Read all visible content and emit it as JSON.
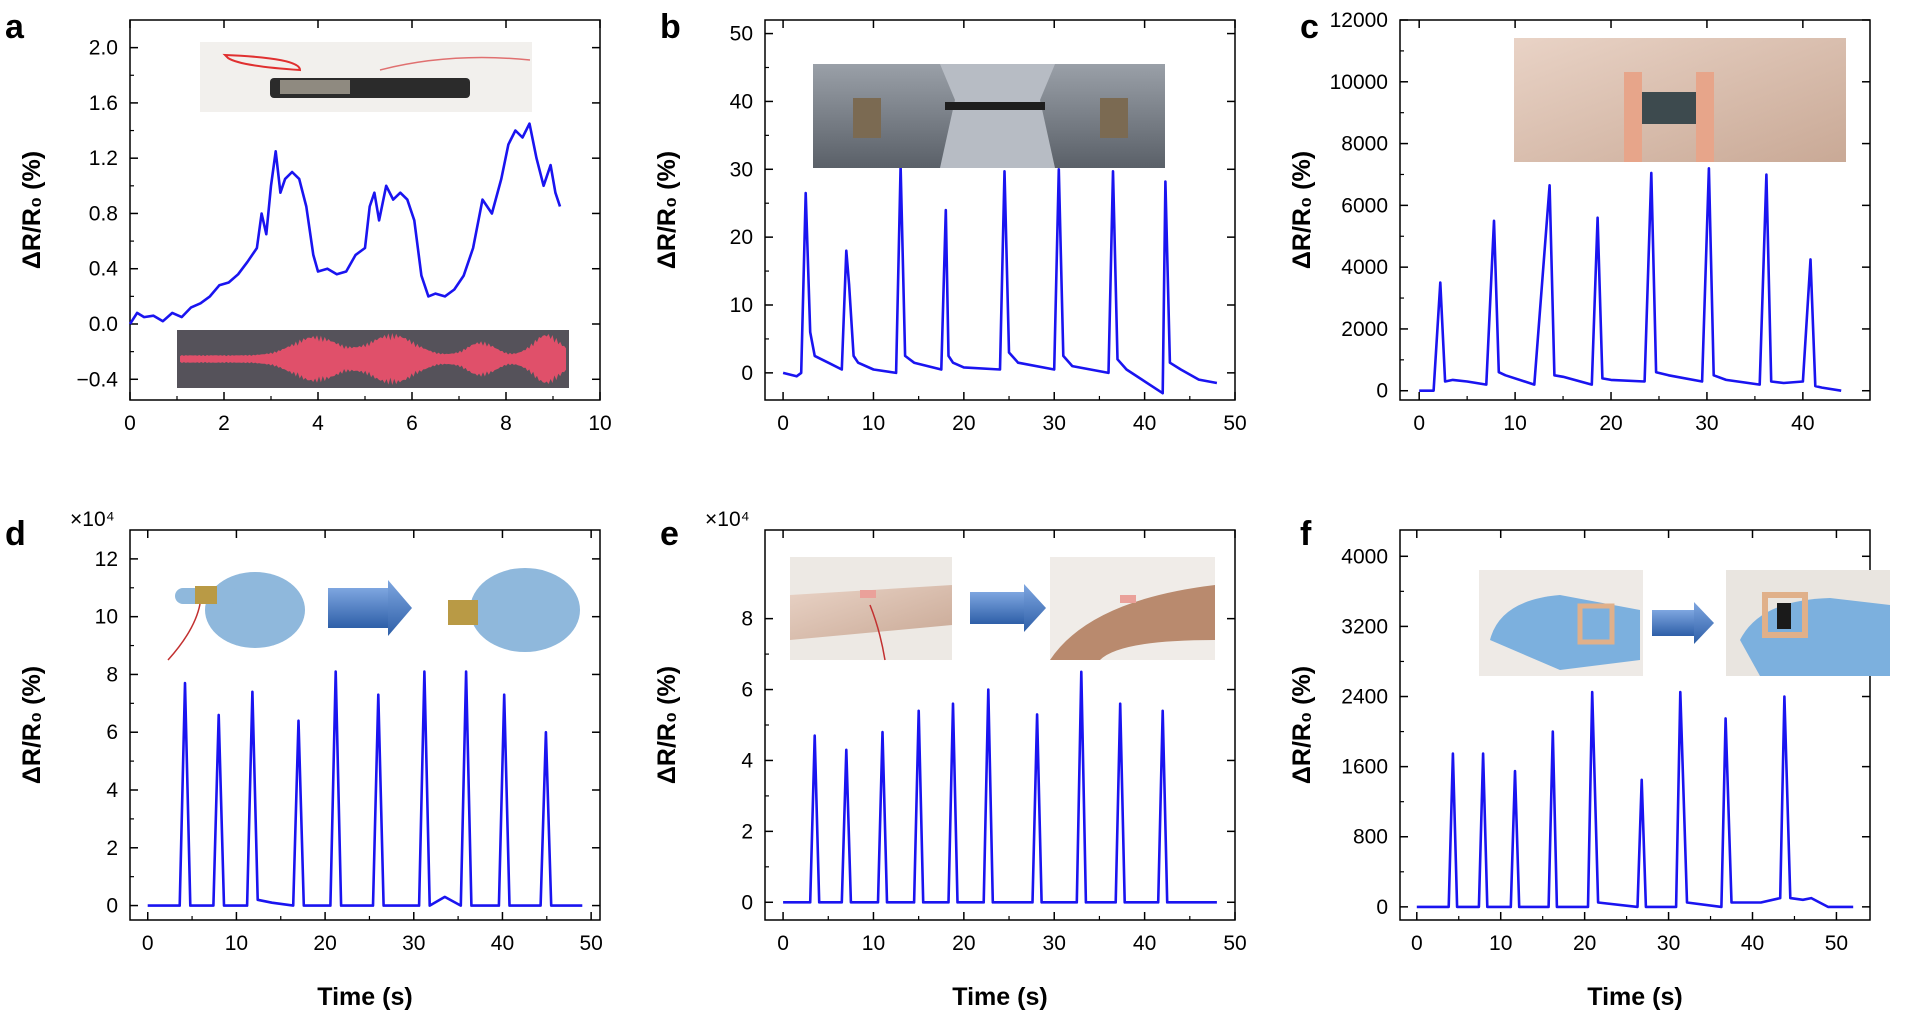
{
  "figure": {
    "panels": [
      {
        "letter": "a",
        "ylabel": "ΔR/R₀ (%)",
        "xlabel": "",
        "multiplier": ""
      },
      {
        "letter": "b",
        "ylabel": "ΔR/R₀ (%)",
        "xlabel": "",
        "multiplier": ""
      },
      {
        "letter": "c",
        "ylabel": "ΔR/R₀ (%)",
        "xlabel": "",
        "multiplier": ""
      },
      {
        "letter": "d",
        "ylabel": "ΔR/R₀ (%)",
        "xlabel": "Time (s)",
        "multiplier": "×10⁴"
      },
      {
        "letter": "e",
        "ylabel": "ΔR/R₀ (%)",
        "xlabel": "Time (s)",
        "multiplier": "×10⁴"
      },
      {
        "letter": "f",
        "ylabel": "ΔR/R₀ (%)",
        "xlabel": "Time (s)",
        "multiplier": ""
      }
    ]
  },
  "colors": {
    "line": "#1a14f0",
    "axis": "#000000"
  },
  "chart_data": [
    {
      "type": "line",
      "panel": "a",
      "xlim": [
        0,
        10
      ],
      "ylim": [
        -0.55,
        2.2
      ],
      "xticks": [
        0,
        2,
        4,
        6,
        8,
        10
      ],
      "yticks": [
        -0.4,
        0.0,
        0.4,
        0.8,
        1.2,
        1.6,
        2.0
      ],
      "ytick_labels": [
        "−0.4",
        "0.0",
        "0.4",
        "0.8",
        "1.2",
        "1.6",
        "2.0"
      ],
      "xlabel": "",
      "ylabel": "ΔR/R₀ (%)",
      "series": [
        {
          "x": [
            0,
            0.15,
            0.3,
            0.5,
            0.7,
            0.9,
            1.1,
            1.3,
            1.5,
            1.7,
            1.9,
            2.1,
            2.3,
            2.5,
            2.7,
            2.8,
            2.9,
            3.0,
            3.1,
            3.2,
            3.3,
            3.45,
            3.6,
            3.75,
            3.9,
            4.0,
            4.2,
            4.4,
            4.6,
            4.8,
            5.0,
            5.1,
            5.2,
            5.3,
            5.45,
            5.6,
            5.75,
            5.9,
            6.05,
            6.2,
            6.35,
            6.5,
            6.7,
            6.9,
            7.1,
            7.3,
            7.5,
            7.7,
            7.9,
            8.05,
            8.2,
            8.35,
            8.5,
            8.65,
            8.8,
            8.95,
            9.05,
            9.15
          ],
          "y": [
            0.0,
            0.08,
            0.05,
            0.06,
            0.02,
            0.08,
            0.05,
            0.12,
            0.15,
            0.2,
            0.28,
            0.3,
            0.36,
            0.45,
            0.55,
            0.8,
            0.65,
            1.0,
            1.25,
            0.95,
            1.05,
            1.1,
            1.05,
            0.85,
            0.5,
            0.38,
            0.4,
            0.36,
            0.38,
            0.5,
            0.55,
            0.85,
            0.95,
            0.75,
            1.0,
            0.9,
            0.95,
            0.9,
            0.75,
            0.35,
            0.2,
            0.22,
            0.2,
            0.25,
            0.35,
            0.55,
            0.9,
            0.8,
            1.05,
            1.3,
            1.4,
            1.35,
            1.45,
            1.2,
            1.0,
            1.15,
            0.95,
            0.85
          ]
        }
      ]
    },
    {
      "type": "line",
      "panel": "b",
      "xlim": [
        -2,
        50
      ],
      "ylim": [
        -4,
        52
      ],
      "xticks": [
        0,
        10,
        20,
        30,
        40,
        50
      ],
      "yticks": [
        0,
        10,
        20,
        30,
        40,
        50
      ],
      "xlabel": "",
      "ylabel": "ΔR/R₀ (%)",
      "series": [
        {
          "x": [
            0,
            1.5,
            2.0,
            2.5,
            3.0,
            3.5,
            5.0,
            6.5,
            7.0,
            7.3,
            7.8,
            8.3,
            10,
            12.5,
            13.0,
            13.5,
            14.5,
            17.5,
            18.0,
            18.3,
            18.8,
            20,
            24,
            24.5,
            25.0,
            26,
            30,
            30.5,
            31.0,
            32,
            36,
            36.5,
            37.0,
            38,
            42,
            42.3,
            42.8,
            44,
            46,
            48
          ],
          "y": [
            0,
            -0.5,
            0,
            26.5,
            6,
            2.5,
            1.5,
            0.5,
            18,
            13,
            2.5,
            1.5,
            0.5,
            0,
            30.5,
            2.5,
            1.5,
            0.5,
            24,
            2.5,
            1.5,
            0.8,
            0.5,
            29.7,
            3,
            1.5,
            0.5,
            30,
            2.5,
            1,
            0,
            29.7,
            2,
            0.5,
            -3,
            28.2,
            1.5,
            0.5,
            -1,
            -1.5
          ]
        }
      ]
    },
    {
      "type": "line",
      "panel": "c",
      "xlim": [
        -2,
        47
      ],
      "ylim": [
        -300,
        12000
      ],
      "xticks": [
        0,
        10,
        20,
        30,
        40
      ],
      "yticks": [
        0,
        2000,
        4000,
        6000,
        8000,
        10000,
        12000
      ],
      "xlabel": "",
      "ylabel": "ΔR/R₀ (%)",
      "series": [
        {
          "x": [
            0,
            1.5,
            2.2,
            2.7,
            3.5,
            5,
            7,
            7.8,
            8.3,
            9,
            12,
            13.6,
            14.1,
            15,
            18,
            18.6,
            19.1,
            20,
            23.5,
            24.2,
            24.7,
            26,
            29.5,
            30.2,
            30.7,
            32,
            35.5,
            36.2,
            36.7,
            38,
            40,
            40.8,
            41.3,
            42,
            44
          ],
          "y": [
            0,
            0,
            3500,
            300,
            350,
            300,
            200,
            5500,
            600,
            500,
            200,
            6650,
            500,
            450,
            200,
            5600,
            400,
            350,
            300,
            7050,
            600,
            500,
            300,
            7200,
            500,
            350,
            200,
            7000,
            300,
            250,
            300,
            4250,
            150,
            100,
            0
          ]
        }
      ]
    },
    {
      "type": "line",
      "panel": "d",
      "xlim": [
        -2,
        51
      ],
      "ylim": [
        -0.5,
        13
      ],
      "xticks": [
        0,
        10,
        20,
        30,
        40,
        50
      ],
      "yticks": [
        0,
        2,
        4,
        6,
        8,
        10,
        12
      ],
      "xlabel": "Time (s)",
      "ylabel": "ΔR/R₀ (%)",
      "series": [
        {
          "x": [
            0,
            3.6,
            4.2,
            4.8,
            7.4,
            8.0,
            8.6,
            11.2,
            11.8,
            12.4,
            14,
            16.4,
            17.0,
            17.6,
            20.6,
            21.2,
            21.8,
            25.4,
            26.0,
            26.6,
            30.6,
            31.2,
            31.8,
            33.5,
            35.3,
            35.9,
            36.5,
            39.6,
            40.2,
            40.8,
            44.3,
            44.9,
            45.5,
            49
          ],
          "y": [
            0,
            0,
            7.7,
            0,
            0,
            6.6,
            0,
            0,
            7.4,
            0.2,
            0.1,
            0,
            6.4,
            0,
            0,
            8.1,
            0,
            0,
            7.3,
            0,
            0,
            8.1,
            0,
            0.3,
            0,
            8.1,
            0,
            0,
            7.3,
            0,
            0,
            6.0,
            0,
            0
          ]
        }
      ]
    },
    {
      "type": "line",
      "panel": "e",
      "xlim": [
        -2,
        50
      ],
      "ylim": [
        -0.5,
        10.5
      ],
      "xticks": [
        0,
        10,
        20,
        30,
        40,
        50
      ],
      "yticks": [
        0,
        2,
        4,
        6,
        8
      ],
      "xlabel": "Time (s)",
      "ylabel": "ΔR/R₀ (%)",
      "series": [
        {
          "x": [
            0,
            3.0,
            3.5,
            4.0,
            6.5,
            7.0,
            7.5,
            10.5,
            11.0,
            11.5,
            14.5,
            15.0,
            15.5,
            18.3,
            18.8,
            19.3,
            22.2,
            22.7,
            23.2,
            27.6,
            28.1,
            28.6,
            32.5,
            33.0,
            33.5,
            36.8,
            37.3,
            37.8,
            41.5,
            42.0,
            42.5,
            48
          ],
          "y": [
            0,
            0,
            4.7,
            0,
            0,
            4.3,
            0,
            0,
            4.8,
            0,
            0,
            5.4,
            0,
            0,
            5.6,
            0,
            0,
            6.0,
            0,
            0,
            5.3,
            0,
            0,
            6.5,
            0,
            0,
            5.6,
            0,
            0,
            5.4,
            0,
            0
          ]
        }
      ]
    },
    {
      "type": "line",
      "panel": "f",
      "xlim": [
        -2,
        54
      ],
      "ylim": [
        -150,
        4300
      ],
      "xticks": [
        0,
        10,
        20,
        30,
        40,
        50
      ],
      "yticks": [
        0,
        800,
        1600,
        2400,
        3200,
        4000
      ],
      "xlabel": "Time (s)",
      "ylabel": "ΔR/R₀ (%)",
      "series": [
        {
          "x": [
            0,
            3.8,
            4.3,
            4.8,
            7.4,
            7.9,
            8.4,
            11.2,
            11.7,
            12.2,
            15.7,
            16.2,
            16.7,
            20.4,
            20.9,
            21.6,
            26.3,
            26.8,
            27.3,
            30.9,
            31.4,
            32.2,
            36.3,
            36.8,
            37.5,
            41,
            43.3,
            43.8,
            44.5,
            46,
            47,
            49,
            52
          ],
          "y": [
            0,
            0,
            1750,
            0,
            0,
            1750,
            0,
            0,
            1550,
            0,
            0,
            2000,
            0,
            0,
            2450,
            50,
            0,
            1450,
            0,
            0,
            2450,
            50,
            0,
            2150,
            50,
            50,
            100,
            2400,
            100,
            80,
            100,
            0,
            0
          ]
        }
      ]
    }
  ]
}
